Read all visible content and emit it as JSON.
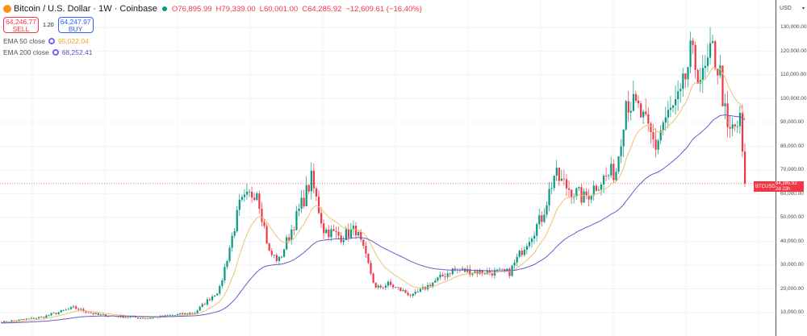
{
  "header": {
    "symbol": "Bitcoin / U.S. Dollar · 1W · Coinbase",
    "open": "O76,895.99",
    "high": "H79,339.00",
    "low": "L60,001.00",
    "close": "C64,285.92",
    "change": "−12,609.61 (−16.40%)"
  },
  "trade": {
    "sell_price": "64,246.77",
    "sell_label": "SELL",
    "spread": "1.20",
    "buy_price": "64,247.97",
    "buy_label": "BUY"
  },
  "indicators": [
    {
      "label": "EMA 50 close",
      "value": "95,022.04",
      "color": "#f0a830"
    },
    {
      "label": "EMA 200 close",
      "value": "68,252.41",
      "color": "#5b4fc7"
    }
  ],
  "axis": {
    "currency": "USD",
    "ticks": [
      "130,000.00",
      "120,000.00",
      "110,000.00",
      "100,000.00",
      "90,000.00",
      "80,000.00",
      "70,000.00",
      "60,000.00",
      "50,000.00",
      "40,000.00",
      "30,000.00",
      "20,000.00",
      "10,000.00"
    ]
  },
  "last_price": {
    "symbol": "BTCUSD",
    "price": "64,285.92",
    "countdown": "2d 23h"
  },
  "colors": {
    "up": "#089981",
    "down": "#f23645",
    "ema50": "#f0c070",
    "ema200": "#6a5acd"
  },
  "chart_data": {
    "type": "candlestick",
    "interval": "1W",
    "ylim": [
      0,
      135000
    ],
    "grid": true,
    "price_path": [
      [
        0,
        6000
      ],
      [
        16,
        8000
      ],
      [
        29,
        12000
      ],
      [
        39,
        9000
      ],
      [
        59,
        7600
      ],
      [
        78,
        10000
      ],
      [
        88,
        20000
      ],
      [
        96,
        55000
      ],
      [
        103,
        62000
      ],
      [
        108,
        35000
      ],
      [
        112,
        32000
      ],
      [
        117,
        45000
      ],
      [
        125,
        66000
      ],
      [
        130,
        45000
      ],
      [
        137,
        42000
      ],
      [
        143,
        45000
      ],
      [
        148,
        30000
      ],
      [
        151,
        20000
      ],
      [
        156,
        22000
      ],
      [
        166,
        17000
      ],
      [
        173,
        22000
      ],
      [
        182,
        28000
      ],
      [
        195,
        27000
      ],
      [
        205,
        27000
      ],
      [
        212,
        40000
      ],
      [
        218,
        50000
      ],
      [
        223,
        68000
      ],
      [
        228,
        63000
      ],
      [
        235,
        58000
      ],
      [
        241,
        65000
      ],
      [
        248,
        70000
      ],
      [
        252,
        100000
      ],
      [
        257,
        95000
      ],
      [
        264,
        80000
      ],
      [
        267,
        90000
      ],
      [
        274,
        100000
      ],
      [
        278,
        118000
      ],
      [
        283,
        108000
      ],
      [
        287,
        120000
      ],
      [
        290,
        110000
      ],
      [
        293,
        85000
      ],
      [
        298,
        90000
      ],
      [
        300,
        64285.92
      ]
    ]
  }
}
